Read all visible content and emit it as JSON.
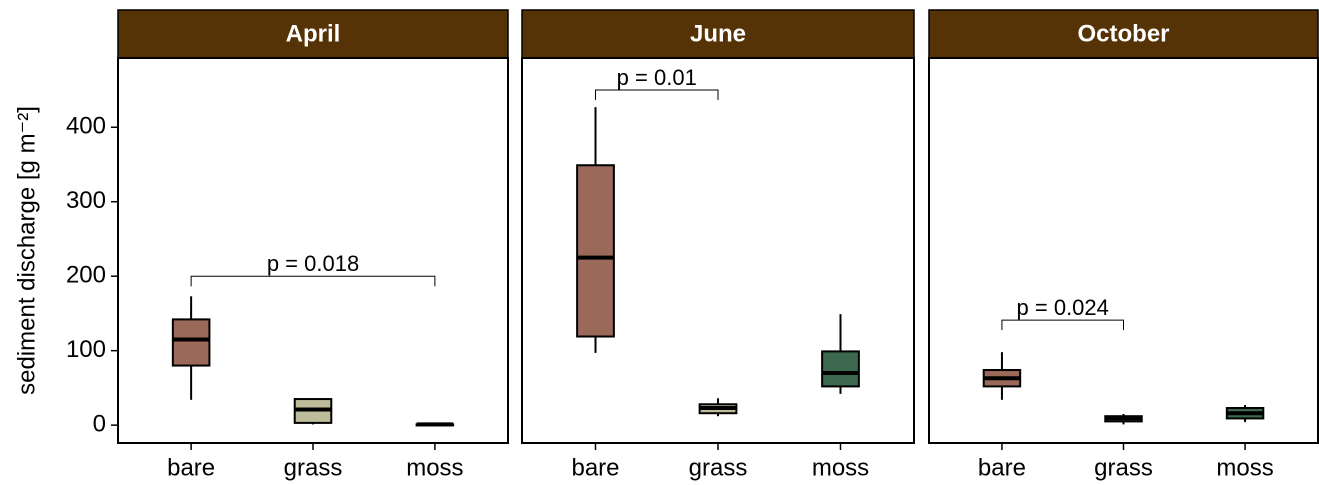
{
  "chart_data": [
    {
      "type": "box",
      "title": "April",
      "ylabel": "sediment discharge [g m⁻²]",
      "categories": [
        "bare",
        "grass",
        "moss"
      ],
      "colors": [
        "#9b6959",
        "#bdbd9b",
        "#3d6a4f"
      ],
      "boxes": [
        {
          "min": 34,
          "q1": 80,
          "median": 115,
          "q3": 142,
          "max": 173
        },
        {
          "min": 1,
          "q1": 3,
          "median": 21,
          "q3": 35,
          "max": 35
        },
        {
          "min": 0,
          "q1": 0,
          "median": 1,
          "q3": 1,
          "max": 2
        }
      ],
      "bracket": {
        "y": 200,
        "label": "p = 0.018",
        "categories": [
          "bare",
          "moss"
        ]
      },
      "ylim": [
        -24,
        493
      ],
      "yticks": [
        0,
        100,
        200,
        300,
        400
      ]
    },
    {
      "type": "box",
      "title": "June",
      "categories": [
        "bare",
        "grass",
        "moss"
      ],
      "colors": [
        "#9b6959",
        "#bdbd9b",
        "#3d6a4f"
      ],
      "boxes": [
        {
          "min": 97,
          "q1": 119,
          "median": 225,
          "q3": 349,
          "max": 427
        },
        {
          "min": 12,
          "q1": 16,
          "median": 23,
          "q3": 28,
          "max": 36
        },
        {
          "min": 42,
          "q1": 52,
          "median": 70,
          "q3": 99,
          "max": 149
        }
      ],
      "bracket": {
        "y": 450,
        "label": "p = 0.01",
        "categories": [
          "bare",
          "grass"
        ]
      },
      "ylim": [
        -24,
        493
      ]
    },
    {
      "type": "box",
      "title": "October",
      "categories": [
        "bare",
        "grass",
        "moss"
      ],
      "colors": [
        "#9b6959",
        "#bdbd9b",
        "#3d6a4f"
      ],
      "boxes": [
        {
          "min": 34,
          "q1": 52,
          "median": 63,
          "q3": 74,
          "max": 98
        },
        {
          "min": 1,
          "q1": 5,
          "median": 9,
          "q3": 12,
          "max": 15
        },
        {
          "min": 4,
          "q1": 9,
          "median": 16,
          "q3": 23,
          "max": 27
        }
      ],
      "bracket": {
        "y": 141,
        "label": "p = 0.024",
        "categories": [
          "bare",
          "grass"
        ]
      },
      "ylim": [
        -24,
        493
      ]
    }
  ]
}
